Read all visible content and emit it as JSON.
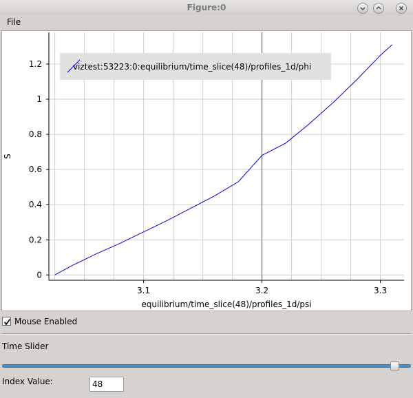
{
  "window": {
    "title": "Figure:0"
  },
  "menu": {
    "file": "File"
  },
  "chart_data": {
    "type": "line",
    "title": "",
    "xlabel": "equilibrium/time_slice(48)/profiles_1d/psi",
    "ylabel": "S",
    "xlim": [
      3.02,
      3.32
    ],
    "ylim": [
      -0.03,
      1.38
    ],
    "x_ticks": [
      3.1,
      3.2,
      3.3
    ],
    "x_tick_labels": [
      "3.1",
      "3.2",
      "3.3"
    ],
    "y_ticks": [
      0,
      0.2,
      0.4,
      0.6,
      0.8,
      1.0,
      1.2
    ],
    "y_tick_labels": [
      "0",
      "0.2",
      "0.4",
      "0.6",
      "0.8",
      "1",
      "1.2"
    ],
    "grid": true,
    "crosshair": {
      "x": 3.2,
      "y": 0
    },
    "legend_position": "top-left",
    "line_color": "#0000dd",
    "series": [
      {
        "name": "viztest:53223:0:equilibrium/time_slice(48)/profiles_1d/phi",
        "x": [
          3.025,
          3.04,
          3.06,
          3.08,
          3.1,
          3.12,
          3.14,
          3.16,
          3.18,
          3.2,
          3.22,
          3.24,
          3.26,
          3.28,
          3.3,
          3.31
        ],
        "y": [
          0.0,
          0.055,
          0.12,
          0.18,
          0.245,
          0.31,
          0.38,
          0.45,
          0.53,
          0.68,
          0.75,
          0.86,
          0.98,
          1.11,
          1.25,
          1.31
        ]
      }
    ]
  },
  "controls": {
    "mouse_enabled": "Mouse Enabled",
    "time_slider_label": "Time Slider",
    "index_label": "Index Value:",
    "index_value": "48",
    "slider_level": 0.97
  }
}
